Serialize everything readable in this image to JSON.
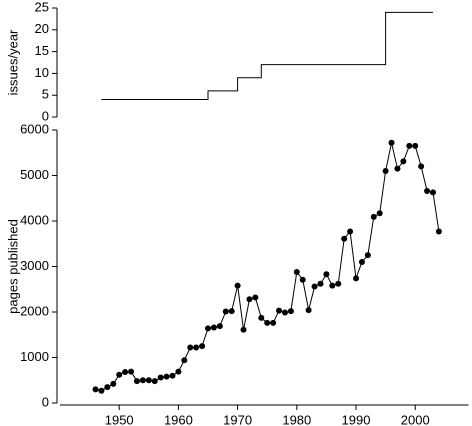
{
  "chart_data": [
    {
      "type": "step",
      "y_label": "issues/year",
      "x": [
        1947,
        1965,
        1970,
        1974,
        1995,
        2003
      ],
      "values": [
        4,
        6,
        9,
        12,
        24,
        24
      ],
      "color": "#000000",
      "xlim": [
        1940,
        2009
      ],
      "ylim": [
        0,
        25
      ],
      "yticks": [
        0,
        5,
        10,
        15,
        20,
        25
      ]
    },
    {
      "type": "line",
      "y_label": "pages published",
      "x": [
        1946,
        1947,
        1948,
        1949,
        1950,
        1951,
        1952,
        1953,
        1954,
        1955,
        1956,
        1957,
        1958,
        1959,
        1960,
        1961,
        1962,
        1963,
        1964,
        1965,
        1966,
        1967,
        1968,
        1969,
        1970,
        1971,
        1972,
        1973,
        1974,
        1975,
        1976,
        1977,
        1978,
        1979,
        1980,
        1981,
        1982,
        1983,
        1984,
        1985,
        1986,
        1987,
        1988,
        1989,
        1990,
        1991,
        1992,
        1993,
        1994,
        1995,
        1996,
        1997,
        1998,
        1999,
        2000,
        2001,
        2002,
        2003,
        2004
      ],
      "values": [
        300,
        270,
        350,
        420,
        620,
        680,
        690,
        480,
        500,
        500,
        480,
        560,
        580,
        600,
        690,
        940,
        1220,
        1220,
        1250,
        1640,
        1660,
        1690,
        2010,
        2020,
        2580,
        1610,
        2280,
        2320,
        1870,
        1760,
        1760,
        2030,
        1990,
        2020,
        2880,
        2710,
        2040,
        2560,
        2620,
        2830,
        2580,
        2620,
        3610,
        3770,
        2740,
        3100,
        3250,
        4090,
        4170,
        5100,
        5720,
        5150,
        5310,
        5650,
        5650,
        5200,
        4660,
        4630,
        3770
      ],
      "color": "#000000",
      "xlim": [
        1940,
        2009
      ],
      "xticks": [
        1950,
        1960,
        1970,
        1980,
        1990,
        2000
      ],
      "ylim": [
        0,
        6000
      ],
      "yticks": [
        0,
        1000,
        2000,
        3000,
        4000,
        5000,
        6000
      ]
    }
  ]
}
